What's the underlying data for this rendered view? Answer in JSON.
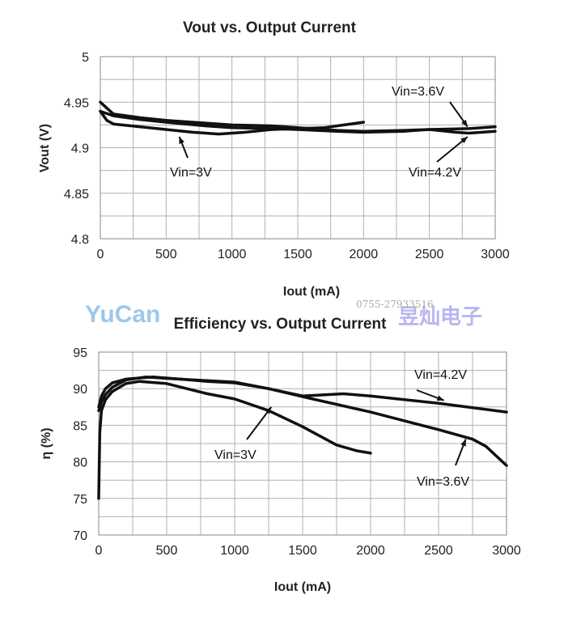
{
  "chart_data": [
    {
      "type": "line",
      "title": "Vout vs. Output Current",
      "xlabel": "Iout (mA)",
      "ylabel": "Vout (V)",
      "xlim": [
        0,
        3000
      ],
      "ylim": [
        4.8,
        5.0
      ],
      "xticks": [
        "0",
        "500",
        "1000",
        "1500",
        "2000",
        "2500",
        "3000"
      ],
      "yticks": [
        "4.8",
        "4.85",
        "4.9",
        "4.95",
        "5"
      ],
      "grid": true,
      "series": [
        {
          "name": "Vin=3V",
          "x": [
            0,
            50,
            100,
            300,
            500,
            700,
            900,
            1100,
            1300,
            1500,
            1700,
            1850,
            2000
          ],
          "y": [
            4.94,
            4.93,
            4.926,
            4.923,
            4.92,
            4.917,
            4.915,
            4.917,
            4.92,
            4.921,
            4.922,
            4.925,
            4.928
          ]
        },
        {
          "name": "Vin=3.6V",
          "x": [
            0,
            60,
            100,
            300,
            500,
            800,
            1000,
            1300,
            1500,
            1800,
            2000,
            2300,
            2500,
            2800,
            3000
          ],
          "y": [
            4.95,
            4.942,
            4.937,
            4.933,
            4.93,
            4.927,
            4.925,
            4.924,
            4.922,
            4.919,
            4.918,
            4.919,
            4.92,
            4.921,
            4.923
          ]
        },
        {
          "name": "Vin=4.2V",
          "x": [
            0,
            60,
            100,
            300,
            500,
            800,
            1000,
            1300,
            1500,
            1800,
            2000,
            2300,
            2500,
            2700,
            2800,
            3000
          ],
          "y": [
            4.94,
            4.937,
            4.935,
            4.931,
            4.928,
            4.924,
            4.922,
            4.921,
            4.92,
            4.918,
            4.917,
            4.918,
            4.92,
            4.917,
            4.916,
            4.918
          ]
        }
      ],
      "annotations": [
        {
          "text": "Vin=3V",
          "arrow_to": [
            600,
            4.912
          ]
        },
        {
          "text": "Vin=3.6V",
          "arrow_to": [
            2790,
            4.923
          ]
        },
        {
          "text": "Vin=4.2V",
          "arrow_to": [
            2790,
            4.912
          ]
        }
      ]
    },
    {
      "type": "line",
      "title": "Efficiency vs. Output Current",
      "xlabel": "Iout (mA)",
      "ylabel": "η (%)",
      "xlim": [
        0,
        3000
      ],
      "ylim": [
        70,
        95
      ],
      "xticks": [
        "0",
        "500",
        "1000",
        "1500",
        "2000",
        "2500",
        "3000"
      ],
      "yticks": [
        "70",
        "75",
        "80",
        "85",
        "90",
        "95"
      ],
      "grid": true,
      "series": [
        {
          "name": "Vin=3V",
          "x": [
            0,
            8,
            20,
            50,
            100,
            200,
            300,
            500,
            800,
            1000,
            1250,
            1500,
            1750,
            1900,
            2000
          ],
          "y": [
            75,
            84,
            87,
            88.5,
            89.6,
            90.7,
            91,
            90.7,
            89.3,
            88.6,
            87,
            84.8,
            82.3,
            81.5,
            81.2
          ]
        },
        {
          "name": "Vin=3.6V",
          "x": [
            0,
            20,
            50,
            100,
            200,
            350,
            500,
            700,
            1000,
            1250,
            1500,
            2000,
            2500,
            2750,
            2850,
            3000
          ],
          "y": [
            87,
            88.2,
            89.2,
            90.2,
            91.2,
            91.6,
            91.4,
            91.2,
            90.9,
            90,
            88.9,
            86.8,
            84.4,
            83.1,
            82.1,
            79.5
          ]
        },
        {
          "name": "Vin=4.2V",
          "x": [
            0,
            20,
            50,
            100,
            200,
            400,
            600,
            800,
            1000,
            1250,
            1500,
            1800,
            2000,
            2500,
            3000
          ],
          "y": [
            87.5,
            89,
            90,
            90.8,
            91.3,
            91.6,
            91.3,
            91,
            90.8,
            90,
            89,
            89.3,
            89,
            88,
            86.8
          ]
        }
      ],
      "annotations": [
        {
          "text": "Vin=3V",
          "arrow_to": [
            1270,
            87.5
          ]
        },
        {
          "text": "Vin=4.2V",
          "arrow_to": [
            2540,
            88.4
          ]
        },
        {
          "text": "Vin=3.6V",
          "arrow_to": [
            2700,
            83.1
          ]
        }
      ]
    }
  ],
  "watermark": {
    "brand": "YuCan",
    "chinese": "昱灿电子",
    "phone": "0755-27933516"
  }
}
